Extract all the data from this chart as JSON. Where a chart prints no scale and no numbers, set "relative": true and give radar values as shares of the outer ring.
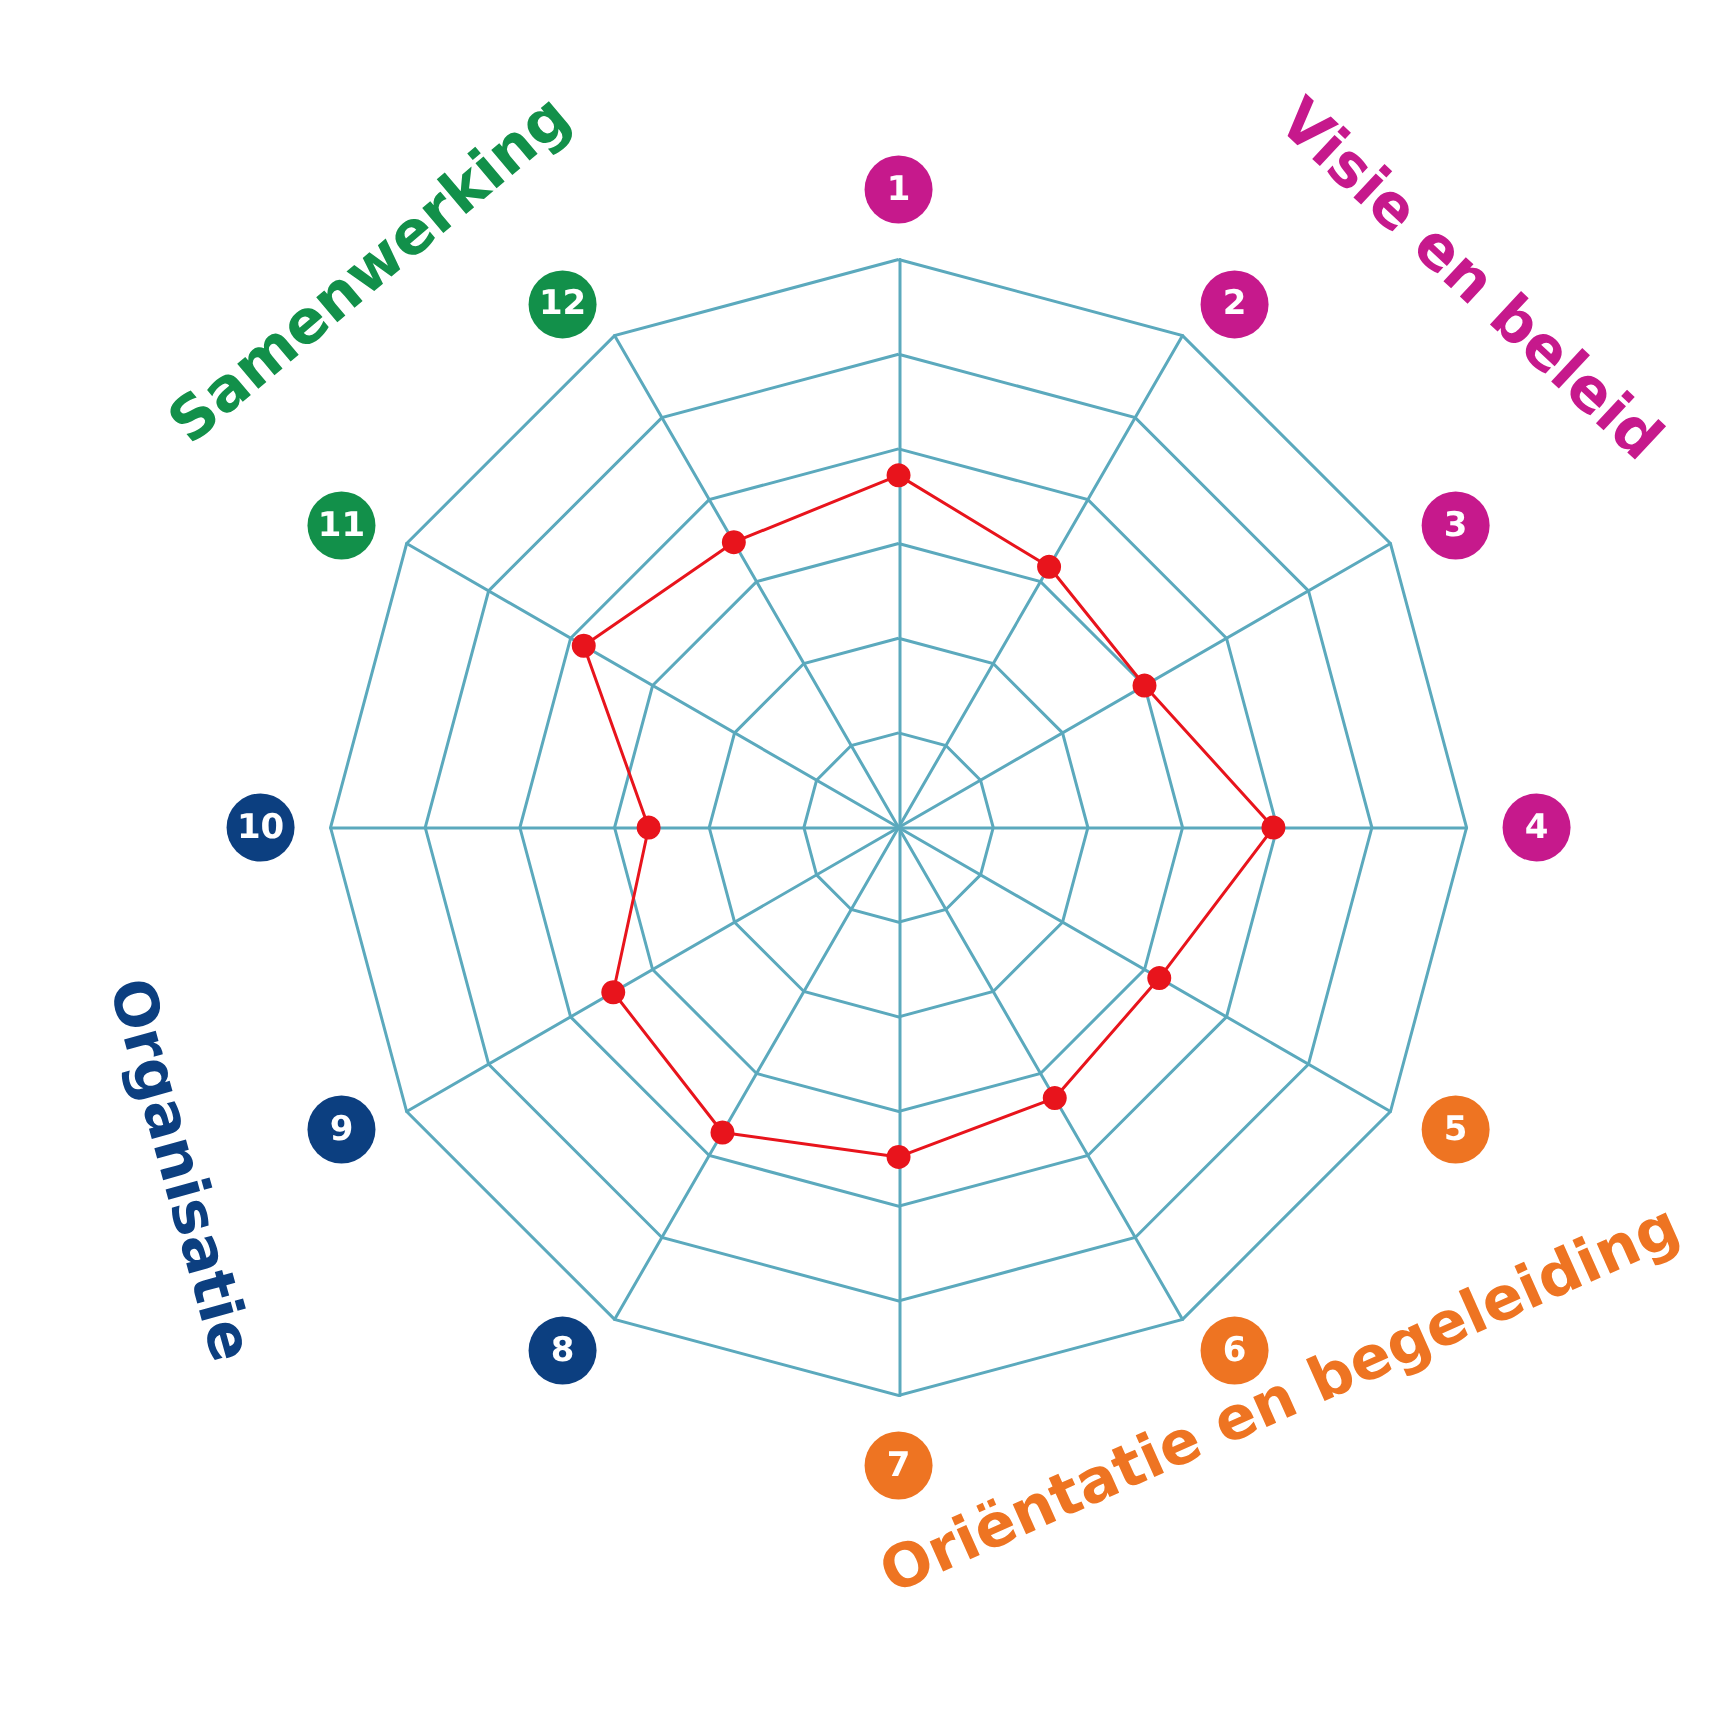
{
  "chart_data": {
    "type": "radar",
    "relative": true,
    "marker": "circle",
    "categories": [
      "1",
      "2",
      "3",
      "4",
      "5",
      "6",
      "7",
      "8",
      "9",
      "10",
      "11",
      "12"
    ],
    "series": [
      {
        "color": "#e8141c",
        "values": [
          0.62,
          0.53,
          0.5,
          0.66,
          0.53,
          0.55,
          0.58,
          0.62,
          0.58,
          0.44,
          0.64,
          0.58
        ]
      }
    ],
    "annotations": [
      "Samenwerking",
      "Visie en beleid",
      "Oriëntatie en begeleiding",
      "Organisatie"
    ]
  }
}
